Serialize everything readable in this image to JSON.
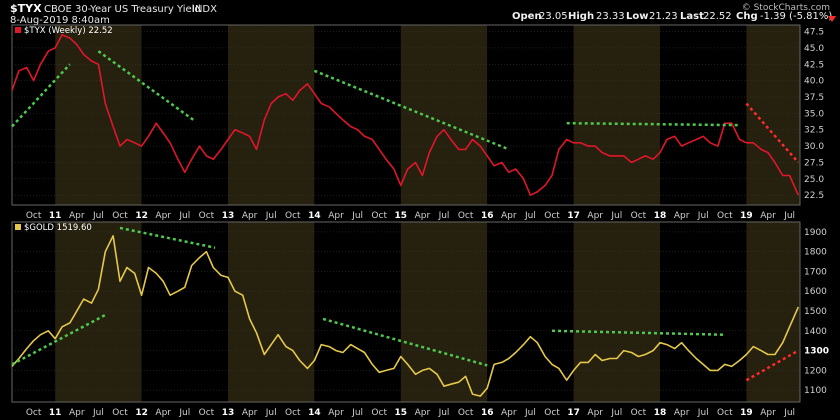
{
  "header": {
    "symbol": "$TYX",
    "name": "CBOE 30-Year US Treasury Yield",
    "exchange": "INDX",
    "date": "8-Aug-2019 8:40am",
    "open_label": "Open",
    "open": "23.05",
    "high_label": "High",
    "high": "23.33",
    "low_label": "Low",
    "low": "21.23",
    "last_label": "Last",
    "last": "22.52",
    "chg_label": "Chg",
    "chg": "-1.39 (-5.81%)",
    "watermark": "© StockCharts.com"
  },
  "chart_data": [
    {
      "type": "line",
      "legend": "$TYX (Weekly) 22.52",
      "ylim": [
        21,
        48.5
      ],
      "y_ticks": [
        "22.5",
        "25.0",
        "27.5",
        "30.0",
        "32.5",
        "35.0",
        "37.5",
        "40.0",
        "42.5",
        "45.0",
        "47.5"
      ],
      "y_tick_values": [
        22.5,
        25,
        27.5,
        30,
        32.5,
        35,
        37.5,
        40,
        42.5,
        45,
        47.5
      ],
      "x_ticks": [
        "Oct",
        "11",
        "Apr",
        "Jul",
        "Oct",
        "12",
        "Apr",
        "Jul",
        "Oct",
        "13",
        "Apr",
        "Jul",
        "Oct",
        "14",
        "Apr",
        "Jul",
        "Oct",
        "15",
        "Apr",
        "Jul",
        "Oct",
        "16",
        "Apr",
        "Jul",
        "Oct",
        "17",
        "Apr",
        "Jul",
        "Oct",
        "18",
        "Apr",
        "Jul",
        "Oct",
        "19",
        "Apr",
        "Jul"
      ],
      "x_tick_values": [
        2010.75,
        2011.0,
        2011.25,
        2011.5,
        2011.75,
        2012.0,
        2012.25,
        2012.5,
        2012.75,
        2013.0,
        2013.25,
        2013.5,
        2013.75,
        2014.0,
        2014.25,
        2014.5,
        2014.75,
        2015.0,
        2015.25,
        2015.5,
        2015.75,
        2016.0,
        2016.25,
        2016.5,
        2016.75,
        2017.0,
        2017.25,
        2017.5,
        2017.75,
        2018.0,
        2018.25,
        2018.5,
        2018.75,
        2019.0,
        2019.25,
        2019.5
      ],
      "x": [
        2010.5,
        2010.58,
        2010.67,
        2010.75,
        2010.83,
        2010.92,
        2011.0,
        2011.08,
        2011.17,
        2011.25,
        2011.33,
        2011.42,
        2011.5,
        2011.58,
        2011.67,
        2011.75,
        2011.83,
        2011.92,
        2012.0,
        2012.08,
        2012.17,
        2012.25,
        2012.33,
        2012.42,
        2012.5,
        2012.58,
        2012.67,
        2012.75,
        2012.83,
        2012.92,
        2013.0,
        2013.08,
        2013.17,
        2013.25,
        2013.33,
        2013.42,
        2013.5,
        2013.58,
        2013.67,
        2013.75,
        2013.83,
        2013.92,
        2014.0,
        2014.08,
        2014.17,
        2014.25,
        2014.33,
        2014.42,
        2014.5,
        2014.58,
        2014.67,
        2014.75,
        2014.83,
        2014.92,
        2015.0,
        2015.08,
        2015.17,
        2015.25,
        2015.33,
        2015.42,
        2015.5,
        2015.58,
        2015.67,
        2015.75,
        2015.83,
        2015.92,
        2016.0,
        2016.08,
        2016.17,
        2016.25,
        2016.33,
        2016.42,
        2016.5,
        2016.58,
        2016.67,
        2016.75,
        2016.83,
        2016.92,
        2017.0,
        2017.08,
        2017.17,
        2017.25,
        2017.33,
        2017.42,
        2017.5,
        2017.58,
        2017.67,
        2017.75,
        2017.83,
        2017.92,
        2018.0,
        2018.08,
        2018.17,
        2018.25,
        2018.33,
        2018.42,
        2018.5,
        2018.58,
        2018.67,
        2018.75,
        2018.83,
        2018.92,
        2019.0,
        2019.08,
        2019.17,
        2019.25,
        2019.33,
        2019.42,
        2019.5,
        2019.6
      ],
      "values": [
        38.5,
        41.5,
        42.0,
        40.0,
        42.5,
        44.5,
        45.0,
        47.0,
        46.5,
        45.5,
        44.0,
        43.0,
        42.5,
        36.5,
        33.0,
        30.0,
        31.0,
        30.5,
        30.0,
        31.5,
        33.5,
        32.0,
        30.5,
        28.0,
        26.0,
        28.0,
        30.0,
        28.5,
        28.0,
        29.5,
        31.0,
        32.5,
        32.0,
        31.5,
        29.5,
        34.0,
        36.5,
        37.5,
        38.0,
        37.0,
        38.5,
        39.5,
        38.0,
        36.5,
        36.0,
        35.0,
        34.0,
        33.0,
        32.5,
        31.5,
        31.0,
        29.5,
        28.0,
        26.5,
        24.0,
        26.5,
        27.5,
        25.5,
        29.0,
        31.5,
        32.5,
        31.0,
        29.5,
        29.5,
        31.0,
        30.0,
        28.5,
        27.0,
        27.5,
        26.0,
        26.5,
        25.0,
        22.5,
        23.0,
        24.0,
        25.5,
        29.5,
        31.0,
        30.5,
        30.5,
        30.0,
        30.0,
        29.0,
        28.5,
        28.5,
        28.5,
        27.5,
        28.0,
        28.5,
        28.0,
        29.0,
        31.0,
        31.5,
        30.0,
        30.5,
        31.0,
        31.5,
        30.5,
        30.0,
        33.5,
        33.5,
        31.0,
        30.5,
        30.5,
        29.5,
        29.0,
        27.5,
        25.5,
        25.5,
        22.5
      ],
      "color": "#e0162b",
      "trendlines": [
        {
          "x": [
            2010.5,
            2011.17
          ],
          "y": [
            33.0,
            42.5
          ],
          "color": "#4ec94e"
        },
        {
          "x": [
            2011.5,
            2012.6
          ],
          "y": [
            44.5,
            34.0
          ],
          "color": "#4ec94e"
        },
        {
          "x": [
            2014.0,
            2016.25
          ],
          "y": [
            41.5,
            29.5
          ],
          "color": "#4ec94e"
        },
        {
          "x": [
            2016.92,
            2018.9
          ],
          "y": [
            33.5,
            33.2
          ],
          "color": "#4ec94e"
        },
        {
          "x": [
            2019.0,
            2019.6
          ],
          "y": [
            36.5,
            27.5
          ],
          "color": "#ff2a2a"
        }
      ]
    },
    {
      "type": "line",
      "legend": "$GOLD 1519.60",
      "ylim": [
        1040,
        1950
      ],
      "y_ticks": [
        "1100",
        "1200",
        "1300",
        "1400",
        "1500",
        "1600",
        "1700",
        "1800",
        "1900"
      ],
      "y_tick_values": [
        1100,
        1200,
        1300,
        1400,
        1500,
        1600,
        1700,
        1800,
        1900
      ],
      "highlight_tick": "1300",
      "x_ticks": [
        "Oct",
        "11",
        "Apr",
        "Jul",
        "Oct",
        "12",
        "Apr",
        "Jul",
        "Oct",
        "13",
        "Apr",
        "Jul",
        "Oct",
        "14",
        "Apr",
        "Jul",
        "Oct",
        "15",
        "Apr",
        "Jul",
        "Oct",
        "16",
        "Apr",
        "Jul",
        "Oct",
        "17",
        "Apr",
        "Jul",
        "Oct",
        "18",
        "Apr",
        "Jul",
        "Oct",
        "19",
        "Apr",
        "Jul"
      ],
      "x_tick_values": [
        2010.75,
        2011.0,
        2011.25,
        2011.5,
        2011.75,
        2012.0,
        2012.25,
        2012.5,
        2012.75,
        2013.0,
        2013.25,
        2013.5,
        2013.75,
        2014.0,
        2014.25,
        2014.5,
        2014.75,
        2015.0,
        2015.25,
        2015.5,
        2015.75,
        2016.0,
        2016.25,
        2016.5,
        2016.75,
        2017.0,
        2017.25,
        2017.5,
        2017.75,
        2018.0,
        2018.25,
        2018.5,
        2018.75,
        2019.0,
        2019.25,
        2019.5
      ],
      "x": [
        2010.5,
        2010.58,
        2010.67,
        2010.75,
        2010.83,
        2010.92,
        2011.0,
        2011.08,
        2011.17,
        2011.25,
        2011.33,
        2011.42,
        2011.5,
        2011.58,
        2011.67,
        2011.75,
        2011.83,
        2011.92,
        2012.0,
        2012.08,
        2012.17,
        2012.25,
        2012.33,
        2012.42,
        2012.5,
        2012.58,
        2012.67,
        2012.75,
        2012.83,
        2012.92,
        2013.0,
        2013.08,
        2013.17,
        2013.25,
        2013.33,
        2013.42,
        2013.5,
        2013.58,
        2013.67,
        2013.75,
        2013.83,
        2013.92,
        2014.0,
        2014.08,
        2014.17,
        2014.25,
        2014.33,
        2014.42,
        2014.5,
        2014.58,
        2014.67,
        2014.75,
        2014.83,
        2014.92,
        2015.0,
        2015.08,
        2015.17,
        2015.25,
        2015.33,
        2015.42,
        2015.5,
        2015.58,
        2015.67,
        2015.75,
        2015.83,
        2015.92,
        2016.0,
        2016.08,
        2016.17,
        2016.25,
        2016.33,
        2016.42,
        2016.5,
        2016.58,
        2016.67,
        2016.75,
        2016.83,
        2016.92,
        2017.0,
        2017.08,
        2017.17,
        2017.25,
        2017.33,
        2017.42,
        2017.5,
        2017.58,
        2017.67,
        2017.75,
        2017.83,
        2017.92,
        2018.0,
        2018.08,
        2018.17,
        2018.25,
        2018.33,
        2018.42,
        2018.5,
        2018.58,
        2018.67,
        2018.75,
        2018.83,
        2018.92,
        2019.0,
        2019.08,
        2019.17,
        2019.25,
        2019.33,
        2019.42,
        2019.5,
        2019.6
      ],
      "values": [
        1220,
        1260,
        1310,
        1350,
        1380,
        1400,
        1360,
        1420,
        1440,
        1500,
        1560,
        1540,
        1610,
        1800,
        1880,
        1650,
        1720,
        1690,
        1580,
        1720,
        1690,
        1650,
        1580,
        1600,
        1620,
        1730,
        1770,
        1800,
        1720,
        1680,
        1670,
        1600,
        1580,
        1460,
        1390,
        1280,
        1330,
        1380,
        1320,
        1300,
        1250,
        1210,
        1250,
        1330,
        1320,
        1300,
        1290,
        1330,
        1310,
        1290,
        1230,
        1190,
        1200,
        1210,
        1270,
        1230,
        1180,
        1200,
        1210,
        1180,
        1120,
        1130,
        1140,
        1170,
        1080,
        1070,
        1110,
        1230,
        1240,
        1260,
        1290,
        1330,
        1370,
        1340,
        1270,
        1230,
        1210,
        1150,
        1200,
        1240,
        1240,
        1280,
        1250,
        1260,
        1260,
        1300,
        1290,
        1270,
        1280,
        1300,
        1340,
        1330,
        1310,
        1340,
        1300,
        1260,
        1230,
        1200,
        1200,
        1230,
        1220,
        1250,
        1280,
        1320,
        1300,
        1280,
        1280,
        1340,
        1420,
        1520
      ],
      "color": "#e5c84a",
      "trendlines": [
        {
          "x": [
            2010.5,
            2011.58
          ],
          "y": [
            1230,
            1480
          ],
          "color": "#4ec94e"
        },
        {
          "x": [
            2011.75,
            2012.85
          ],
          "y": [
            1920,
            1820
          ],
          "color": "#4ec94e"
        },
        {
          "x": [
            2014.1,
            2016.0
          ],
          "y": [
            1460,
            1225
          ],
          "color": "#4ec94e"
        },
        {
          "x": [
            2016.75,
            2018.75
          ],
          "y": [
            1400,
            1380
          ],
          "color": "#4ec94e"
        },
        {
          "x": [
            2019.0,
            2019.6
          ],
          "y": [
            1150,
            1300
          ],
          "color": "#ff2a2a"
        }
      ]
    }
  ]
}
